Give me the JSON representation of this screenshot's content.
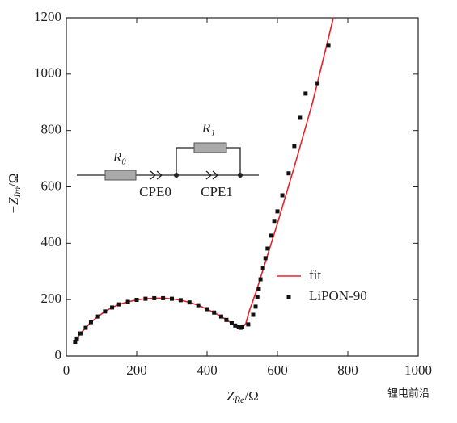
{
  "chart_data": {
    "type": "scatter",
    "x_label": {
      "main": "Z",
      "sub": "Re",
      "unit": "/Ω"
    },
    "y_label": {
      "main": "−Z",
      "sub": "Im",
      "unit": "/Ω"
    },
    "xlim": [
      0,
      1000
    ],
    "xticks": [
      0,
      200,
      400,
      600,
      800,
      1000
    ],
    "ylim": [
      0,
      1200
    ],
    "yticks": [
      0,
      200,
      400,
      600,
      800,
      1000,
      1200
    ],
    "legend": "right",
    "series": [
      {
        "name": "fit",
        "type": "line",
        "color": "#e8202a",
        "x": [
          22,
          30,
          40,
          55,
          70,
          90,
          110,
          130,
          150,
          175,
          200,
          225,
          250,
          275,
          300,
          325,
          350,
          375,
          400,
          420,
          440,
          455,
          470,
          480,
          490,
          500,
          510,
          520,
          540,
          560,
          600,
          650,
          700,
          759
        ],
        "values": [
          45,
          62,
          80,
          100,
          120,
          140,
          158,
          172,
          183,
          192,
          199,
          203,
          205,
          205,
          203,
          198,
          190,
          180,
          166,
          154,
          140,
          128,
          116,
          108,
          102,
          100,
          115,
          160,
          230,
          310,
          470,
          680,
          900,
          1200
        ]
      },
      {
        "name": "LiPON-90",
        "type": "scatter",
        "color": "#111111",
        "x": [
          25,
          30,
          40,
          55,
          70,
          90,
          110,
          130,
          150,
          175,
          200,
          225,
          250,
          275,
          300,
          325,
          350,
          375,
          400,
          420,
          440,
          455,
          470,
          480,
          490,
          495,
          500,
          517,
          531,
          538,
          543,
          547,
          552,
          559,
          566,
          572,
          582,
          591,
          600,
          614,
          632,
          648,
          664,
          680,
          714,
          745
        ],
        "values": [
          50,
          62,
          80,
          100,
          120,
          140,
          158,
          172,
          183,
          192,
          199,
          203,
          205,
          205,
          203,
          198,
          190,
          180,
          166,
          154,
          140,
          128,
          116,
          108,
          102,
          100,
          102,
          112,
          146,
          175,
          209,
          238,
          272,
          312,
          347,
          381,
          427,
          479,
          513,
          570,
          648,
          745,
          845,
          931,
          968,
          1103
        ]
      }
    ],
    "circuit": {
      "r0": "R₀",
      "cpe0": "CPE0",
      "r1": "R₁",
      "cpe1": "CPE1"
    },
    "watermark": "锂电前沿"
  }
}
